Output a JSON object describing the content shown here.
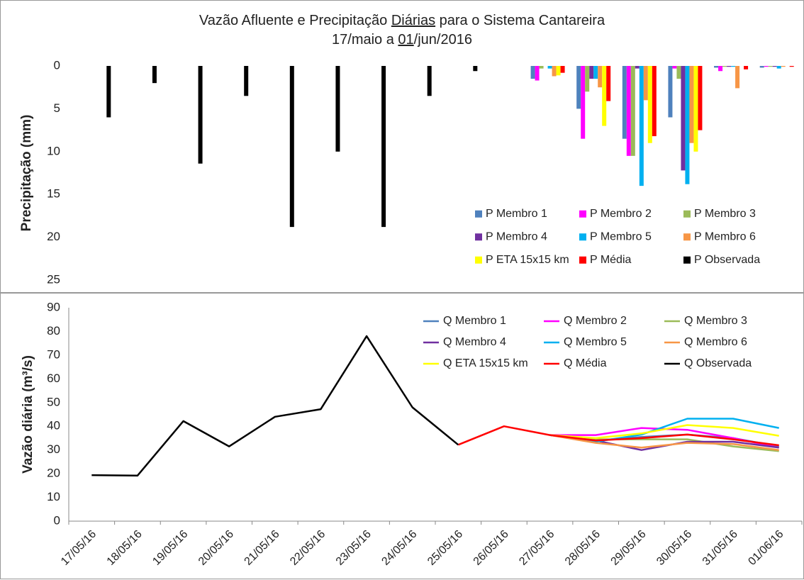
{
  "chart_data": [
    {
      "type": "bar",
      "title": [
        [
          {
            "text": "Vazão Afluente e Precipitação "
          },
          {
            "text": "Diárias",
            "underline": true
          },
          {
            "text": " para o Sistema Cantareira"
          }
        ],
        [
          {
            "text": "17/maio a "
          },
          {
            "text": "01",
            "underline": true
          },
          {
            "text": "/jun/2016"
          }
        ]
      ],
      "y_label": "Precipitação (mm)",
      "ylim": [
        0,
        25
      ],
      "yticks": [
        0,
        5,
        10,
        15,
        20,
        25
      ],
      "y_inverted": true,
      "legend": "lower right",
      "legend_columns": 3,
      "series": [
        {
          "name": "P Membro 1",
          "color": "#4f81bd",
          "values": [
            null,
            null,
            null,
            null,
            null,
            null,
            null,
            null,
            null,
            null,
            1.5,
            5,
            8.5,
            6,
            0.2,
            0.2
          ]
        },
        {
          "name": "P Membro 2",
          "color": "#ff00ff",
          "values": [
            null,
            null,
            null,
            null,
            null,
            null,
            null,
            null,
            null,
            null,
            1.7,
            8.5,
            10.5,
            0.3,
            0.6,
            0.1
          ]
        },
        {
          "name": "P Membro 3",
          "color": "#9bbb59",
          "values": [
            null,
            null,
            null,
            null,
            null,
            null,
            null,
            null,
            null,
            null,
            0.3,
            3,
            10.5,
            1.5,
            0.1,
            0.1
          ]
        },
        {
          "name": "P Membro 4",
          "color": "#7030a0",
          "values": [
            null,
            null,
            null,
            null,
            null,
            null,
            null,
            null,
            null,
            null,
            0,
            1.5,
            0.3,
            12.2,
            0.1,
            0.1
          ]
        },
        {
          "name": "P Membro 5",
          "color": "#00b0f0",
          "values": [
            null,
            null,
            null,
            null,
            null,
            null,
            null,
            null,
            null,
            null,
            0.3,
            1.5,
            14,
            13.8,
            0.1,
            0.3
          ]
        },
        {
          "name": "P Membro 6",
          "color": "#f79646",
          "values": [
            null,
            null,
            null,
            null,
            null,
            null,
            null,
            null,
            null,
            null,
            1.2,
            2.5,
            4,
            9,
            2.6,
            0.1
          ]
        },
        {
          "name": "P ETA 15x15 km",
          "color": "#ffff00",
          "values": [
            null,
            null,
            null,
            null,
            null,
            null,
            null,
            null,
            null,
            null,
            1.1,
            7,
            9,
            10,
            0,
            0
          ]
        },
        {
          "name": "P Média",
          "color": "#ff0000",
          "values": [
            null,
            null,
            null,
            null,
            null,
            null,
            null,
            null,
            null,
            null,
            0.8,
            4.1,
            8.2,
            7.5,
            0.4,
            0.1
          ]
        },
        {
          "name": "P Observada",
          "color": "#000000",
          "values": [
            6,
            2,
            11.4,
            3.5,
            18.8,
            10,
            18.8,
            3.5,
            0.6,
            0,
            0,
            0,
            0,
            0,
            0,
            0
          ]
        }
      ]
    },
    {
      "type": "line",
      "y_label": "Vazão diária (m³/s)",
      "categories": [
        "17/05/16",
        "18/05/16",
        "19/05/16",
        "20/05/16",
        "21/05/16",
        "22/05/16",
        "23/05/16",
        "24/05/16",
        "25/05/16",
        "26/05/16",
        "27/05/16",
        "28/05/16",
        "29/05/16",
        "30/05/16",
        "31/05/16",
        "01/06/16"
      ],
      "ylim": [
        0,
        90
      ],
      "yticks": [
        0,
        10,
        20,
        30,
        40,
        50,
        60,
        70,
        80,
        90
      ],
      "legend": "upper right",
      "legend_columns": 3,
      "series": [
        {
          "name": "Q Membro 1",
          "color": "#4f81bd",
          "values": [
            null,
            null,
            null,
            null,
            null,
            null,
            null,
            null,
            null,
            null,
            36.3,
            34,
            35.5,
            36.5,
            35,
            31.5
          ]
        },
        {
          "name": "Q Membro 2",
          "color": "#ff00ff",
          "values": [
            null,
            null,
            null,
            null,
            null,
            null,
            null,
            null,
            null,
            null,
            36.3,
            36.3,
            39.3,
            38.5,
            35,
            31
          ]
        },
        {
          "name": "Q Membro 3",
          "color": "#9bbb59",
          "values": [
            null,
            null,
            null,
            null,
            null,
            null,
            null,
            null,
            null,
            null,
            36.3,
            34.5,
            34.5,
            34.5,
            31.5,
            29.5
          ]
        },
        {
          "name": "Q Membro 4",
          "color": "#7030a0",
          "values": [
            null,
            null,
            null,
            null,
            null,
            null,
            null,
            null,
            null,
            null,
            36.3,
            34,
            30,
            33.5,
            33.5,
            31
          ]
        },
        {
          "name": "Q Membro 5",
          "color": "#00b0f0",
          "values": [
            null,
            null,
            null,
            null,
            null,
            null,
            null,
            null,
            null,
            null,
            36.3,
            33.5,
            36.5,
            43.2,
            43.2,
            39.3
          ]
        },
        {
          "name": "Q Membro 6",
          "color": "#f79646",
          "values": [
            null,
            null,
            null,
            null,
            null,
            null,
            null,
            null,
            null,
            null,
            36.3,
            33,
            31,
            33,
            32.5,
            30
          ]
        },
        {
          "name": "Q ETA 15x15 km",
          "color": "#ffff00",
          "values": [
            null,
            null,
            null,
            null,
            null,
            null,
            null,
            null,
            null,
            null,
            36.3,
            35,
            37,
            40.5,
            39.3,
            36
          ]
        },
        {
          "name": "Q Média",
          "color": "#ff0000",
          "values": [
            null,
            null,
            null,
            null,
            null,
            null,
            null,
            null,
            32.2,
            40,
            36.3,
            34,
            35,
            36.5,
            34.5,
            32
          ]
        },
        {
          "name": "Q Observada",
          "color": "#000000",
          "values": [
            19.4,
            19.2,
            42.2,
            31.5,
            44,
            47.2,
            78,
            48,
            32.2,
            null,
            null,
            null,
            null,
            null,
            null,
            null
          ]
        }
      ]
    }
  ]
}
